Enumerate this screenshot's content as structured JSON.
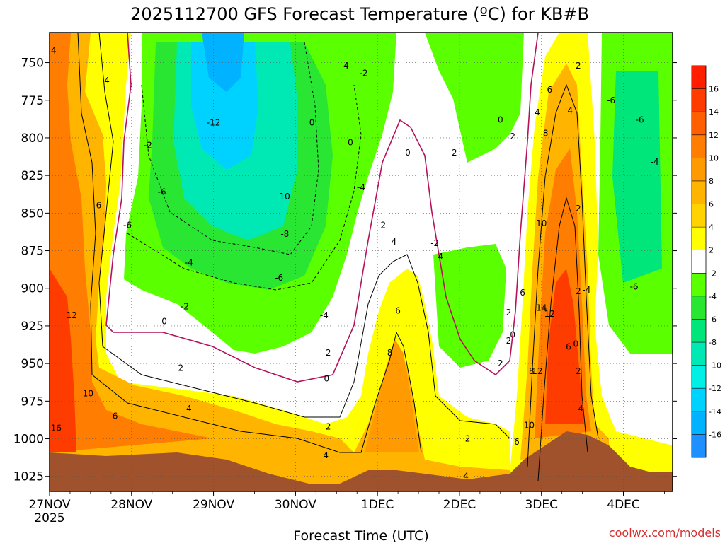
{
  "chart_data": {
    "type": "heatmap",
    "title": "2025112700 GFS Forecast Temperature (ºC) for KB#B",
    "xlabel": "Forecast Time (UTC)",
    "x_ticks": [
      "27NOV",
      "28NOV",
      "29NOV",
      "30NOV",
      "1DEC",
      "2DEC",
      "3DEC",
      "4DEC"
    ],
    "x_tick_year": "2025",
    "y_ticks": [
      750,
      775,
      800,
      825,
      850,
      875,
      900,
      925,
      950,
      975,
      1000,
      1025
    ],
    "ylim": [
      1035,
      730
    ],
    "xlim_days": [
      0,
      7.6
    ],
    "grid": true,
    "colorbar": {
      "levels": [
        -16,
        -14,
        -12,
        -10,
        -8,
        -6,
        -4,
        -2,
        2,
        4,
        6,
        8,
        10,
        12,
        14,
        16
      ],
      "colors": [
        "#1e90ff",
        "#00b2ff",
        "#00d2ff",
        "#00f0e6",
        "#00e8b4",
        "#00e67a",
        "#28e632",
        "#5aff00",
        "#ffffff",
        "#ffff00",
        "#ffd200",
        "#ffb400",
        "#ff9b00",
        "#ff7d00",
        "#ff5f00",
        "#ff3c00",
        "#ff1e00"
      ]
    },
    "contour_labels": [
      {
        "t": 0.05,
        "p": 742,
        "v": "4"
      },
      {
        "t": 0.7,
        "p": 762,
        "v": "4"
      },
      {
        "t": 0.6,
        "p": 845,
        "v": "6"
      },
      {
        "t": 0.27,
        "p": 918,
        "v": "12"
      },
      {
        "t": 0.47,
        "p": 970,
        "v": "10"
      },
      {
        "t": 0.08,
        "p": 993,
        "v": "16"
      },
      {
        "t": 0.8,
        "p": 985,
        "v": "6"
      },
      {
        "t": 1.2,
        "p": 805,
        "v": "-2"
      },
      {
        "t": 1.37,
        "p": 836,
        "v": "-6"
      },
      {
        "t": 1.7,
        "p": 883,
        "v": "-4"
      },
      {
        "t": 1.65,
        "p": 912,
        "v": "-2"
      },
      {
        "t": 1.4,
        "p": 922,
        "v": "0"
      },
      {
        "t": 1.6,
        "p": 953,
        "v": "2"
      },
      {
        "t": 1.7,
        "p": 980,
        "v": "4"
      },
      {
        "t": 2.0,
        "p": 790,
        "v": "-12"
      },
      {
        "t": 2.85,
        "p": 839,
        "v": "-10"
      },
      {
        "t": 2.87,
        "p": 864,
        "v": "-8"
      },
      {
        "t": 2.8,
        "p": 893,
        "v": "-6"
      },
      {
        "t": 3.35,
        "p": 918,
        "v": "-4"
      },
      {
        "t": 3.4,
        "p": 943,
        "v": "2"
      },
      {
        "t": 3.38,
        "p": 960,
        "v": "0"
      },
      {
        "t": 3.4,
        "p": 992,
        "v": "2"
      },
      {
        "t": 3.37,
        "p": 1011,
        "v": "4"
      },
      {
        "t": 3.6,
        "p": 752,
        "v": "-4"
      },
      {
        "t": 3.83,
        "p": 757,
        "v": "-2"
      },
      {
        "t": 3.8,
        "p": 833,
        "v": "-4"
      },
      {
        "t": 3.67,
        "p": 803,
        "v": "0"
      },
      {
        "t": 3.2,
        "p": 790,
        "v": "0"
      },
      {
        "t": 4.07,
        "p": 858,
        "v": "2"
      },
      {
        "t": 4.2,
        "p": 869,
        "v": "4"
      },
      {
        "t": 4.25,
        "p": 915,
        "v": "6"
      },
      {
        "t": 4.15,
        "p": 943,
        "v": "8"
      },
      {
        "t": 4.37,
        "p": 810,
        "v": "0"
      },
      {
        "t": 4.92,
        "p": 810,
        "v": "-2"
      },
      {
        "t": 4.7,
        "p": 870,
        "v": "-2"
      },
      {
        "t": 4.75,
        "p": 879,
        "v": "-4"
      },
      {
        "t": 5.1,
        "p": 1000,
        "v": "2"
      },
      {
        "t": 5.08,
        "p": 1025,
        "v": "4"
      },
      {
        "t": 5.5,
        "p": 950,
        "v": "2"
      },
      {
        "t": 5.7,
        "p": 1002,
        "v": "6"
      },
      {
        "t": 5.6,
        "p": 935,
        "v": "2"
      },
      {
        "t": 5.6,
        "p": 916,
        "v": "2"
      },
      {
        "t": 5.65,
        "p": 931,
        "v": "0"
      },
      {
        "t": 5.5,
        "p": 788,
        "v": "0"
      },
      {
        "t": 5.65,
        "p": 799,
        "v": "2"
      },
      {
        "t": 5.95,
        "p": 783,
        "v": "4"
      },
      {
        "t": 6.1,
        "p": 768,
        "v": "6"
      },
      {
        "t": 6.05,
        "p": 797,
        "v": "8"
      },
      {
        "t": 6.0,
        "p": 857,
        "v": "10"
      },
      {
        "t": 5.77,
        "p": 903,
        "v": "6"
      },
      {
        "t": 5.88,
        "p": 955,
        "v": "8"
      },
      {
        "t": 5.95,
        "p": 955,
        "v": "12"
      },
      {
        "t": 6.0,
        "p": 913,
        "v": "14"
      },
      {
        "t": 6.1,
        "p": 917,
        "v": "12"
      },
      {
        "t": 5.85,
        "p": 991,
        "v": "10"
      },
      {
        "t": 6.35,
        "p": 782,
        "v": "4"
      },
      {
        "t": 6.45,
        "p": 752,
        "v": "2"
      },
      {
        "t": 6.45,
        "p": 847,
        "v": "2"
      },
      {
        "t": 6.33,
        "p": 939,
        "v": "6"
      },
      {
        "t": 6.42,
        "p": 937,
        "v": "0"
      },
      {
        "t": 6.45,
        "p": 955,
        "v": "2"
      },
      {
        "t": 6.48,
        "p": 980,
        "v": "4"
      },
      {
        "t": 6.45,
        "p": 902,
        "v": "2"
      },
      {
        "t": 6.55,
        "p": 901,
        "v": "-4"
      },
      {
        "t": 6.85,
        "p": 775,
        "v": "-6"
      },
      {
        "t": 7.2,
        "p": 788,
        "v": "-6"
      },
      {
        "t": 7.38,
        "p": 816,
        "v": "-4"
      },
      {
        "t": 7.13,
        "p": 899,
        "v": "-6"
      },
      {
        "t": 0.95,
        "p": 858,
        "v": "-6"
      }
    ]
  },
  "credit": "coolwx.com/models"
}
